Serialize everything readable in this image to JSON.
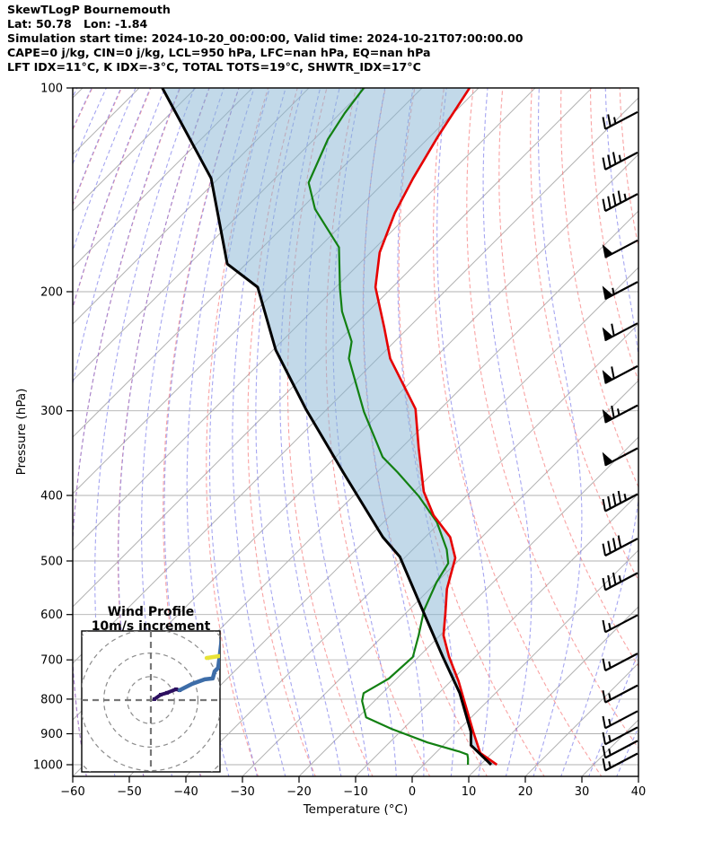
{
  "header": {
    "lines": [
      "SkewTLogP Bournemouth",
      "Lat: 50.78   Lon: -1.84",
      "Simulation start time: 2024-10-20_00:00:00, Valid time: 2024-10-21T07:00:00.00",
      "CAPE=0 j/kg, CIN=0 j/kg, LCL=950 hPa, LFC=nan hPa, EQ=nan hPa",
      "LFT IDX=11°C, K IDX=-3°C, TOTAL TOTS=19°C, SHWTR_IDX=17°C"
    ]
  },
  "axes": {
    "x": {
      "label": "Temperature (°C)",
      "ticks": [
        -60,
        -50,
        -40,
        -30,
        -20,
        -10,
        0,
        10,
        20,
        30,
        40
      ]
    },
    "y": {
      "label": "Pressure (hPa)",
      "ticks": [
        100,
        200,
        300,
        400,
        500,
        600,
        700,
        800,
        900,
        1000
      ]
    }
  },
  "chart_data": {
    "type": "line",
    "subtype": "skewt-logp",
    "skew_deg": 45,
    "pressure_range_hPa": [
      100,
      1045
    ],
    "temperature_range_C": [
      -60,
      40
    ],
    "temperature_curve": [
      [
        100,
        -111.6
      ],
      [
        118,
        -108.6
      ],
      [
        136,
        -105.6
      ],
      [
        153,
        -102.7
      ],
      [
        175,
        -98.4
      ],
      [
        197,
        -93.0
      ],
      [
        226,
        -84.3
      ],
      [
        251,
        -77.8
      ],
      [
        298,
        -64.4
      ],
      [
        340,
        -57.0
      ],
      [
        395,
        -48.3
      ],
      [
        428,
        -42.4
      ],
      [
        461,
        -35.6
      ],
      [
        495,
        -31.0
      ],
      [
        550,
        -27.0
      ],
      [
        597,
        -23.0
      ],
      [
        644,
        -19.4
      ],
      [
        693,
        -14.6
      ],
      [
        753,
        -8.6
      ],
      [
        784,
        -5.9
      ],
      [
        894,
        2.9
      ],
      [
        961,
        7.9
      ],
      [
        1000,
        12.9
      ]
    ],
    "dewpoint_curve": [
      [
        100,
        -130.3
      ],
      [
        109,
        -129.2
      ],
      [
        119,
        -127.6
      ],
      [
        138,
        -123.3
      ],
      [
        151,
        -117.5
      ],
      [
        172,
        -106.5
      ],
      [
        198,
        -99.0
      ],
      [
        214,
        -94.6
      ],
      [
        237,
        -87.6
      ],
      [
        251,
        -85.1
      ],
      [
        301,
        -73.0
      ],
      [
        351,
        -61.7
      ],
      [
        370,
        -56.3
      ],
      [
        401,
        -48.4
      ],
      [
        438,
        -40.6
      ],
      [
        481,
        -34.0
      ],
      [
        504,
        -31.3
      ],
      [
        538,
        -30.0
      ],
      [
        591,
        -27.3
      ],
      [
        644,
        -23.8
      ],
      [
        693,
        -21.0
      ],
      [
        746,
        -21.4
      ],
      [
        784,
        -23.3
      ],
      [
        805,
        -22.2
      ],
      [
        851,
        -18.6
      ],
      [
        885,
        -12.1
      ],
      [
        927,
        -3.3
      ],
      [
        957,
        4.1
      ],
      [
        966,
        5.9
      ],
      [
        979,
        6.7
      ],
      [
        1000,
        7.8
      ]
    ],
    "parcel_curve": [
      [
        100,
        -165.9
      ],
      [
        136,
        -141.3
      ],
      [
        182,
        -123.3
      ],
      [
        197,
        -113.8
      ],
      [
        244,
        -99.5
      ],
      [
        298,
        -83.8
      ],
      [
        371,
        -65.7
      ],
      [
        461,
        -47.5
      ],
      [
        493,
        -41.0
      ],
      [
        593,
        -27.3
      ],
      [
        693,
        -15.7
      ],
      [
        784,
        -6.3
      ],
      [
        894,
        2.5
      ],
      [
        936,
        4.9
      ],
      [
        1000,
        11.9
      ]
    ],
    "fill_between": "parcel_and_temperature",
    "wind_barbs": {
      "units": "m/s",
      "levels": [
        {
          "p": 115,
          "speed": 25
        },
        {
          "p": 132,
          "speed": 35
        },
        {
          "p": 152,
          "speed": 45
        },
        {
          "p": 178,
          "speed": 50
        },
        {
          "p": 205,
          "speed": 55
        },
        {
          "p": 236,
          "speed": 60
        },
        {
          "p": 273,
          "speed": 60
        },
        {
          "p": 312,
          "speed": 65
        },
        {
          "p": 361,
          "speed": 50
        },
        {
          "p": 422,
          "speed": 45
        },
        {
          "p": 491,
          "speed": 40
        },
        {
          "p": 552,
          "speed": 35
        },
        {
          "p": 637,
          "speed": 15
        },
        {
          "p": 726,
          "speed": 15
        },
        {
          "p": 809,
          "speed": 15
        },
        {
          "p": 883,
          "speed": 15
        },
        {
          "p": 933,
          "speed": 15
        },
        {
          "p": 977,
          "speed": 15
        },
        {
          "p": 1020,
          "speed": 15
        }
      ]
    },
    "background": {
      "isotherm_step_C": 10,
      "dry_adiabat_step_C": 10,
      "moist_adiabat_step_C": 5
    },
    "hodograph": {
      "title_line1": "Wind Profile",
      "title_line2": "10m/s increment",
      "rings_ms": [
        10,
        20,
        30,
        40
      ],
      "trace_segments": [
        {
          "name": "low-level",
          "color": "#2d1060",
          "width": 4,
          "pts": [
            [
              1.5,
              0.4
            ],
            [
              4.2,
              2.3
            ],
            [
              6.9,
              3.1
            ],
            [
              10.7,
              4.6
            ],
            [
              12.2,
              4.2
            ]
          ],
          "markers": true
        },
        {
          "name": "mid-upper",
          "color": "#3d6da8",
          "width": 4.5,
          "pts": [
            [
              12.2,
              4.2
            ],
            [
              17.6,
              6.9
            ],
            [
              22.9,
              8.8
            ],
            [
              26.3,
              9.2
            ],
            [
              27.1,
              12.2
            ],
            [
              28.6,
              13.7
            ],
            [
              29.4,
              19.8
            ],
            [
              30.2,
              26.7
            ],
            [
              30.5,
              29.4
            ]
          ],
          "markers": false
        },
        {
          "name": "jet-level",
          "color": "#e8e337",
          "width": 4.5,
          "pts": [
            [
              23.7,
              17.9
            ],
            [
              29.0,
              18.7
            ]
          ],
          "markers": false
        }
      ]
    }
  },
  "colors": {
    "temperature": "#e60000",
    "dewpoint": "#128012",
    "parcel": "#000000",
    "cape_fill": "#86b4d4",
    "isotherm": "#ababab",
    "gridline": "#b0b0b0",
    "dry_adiabat": "#f56b6b",
    "moist_adiabat": "#7070e8",
    "hodo_ring": "#8a8a8a"
  }
}
